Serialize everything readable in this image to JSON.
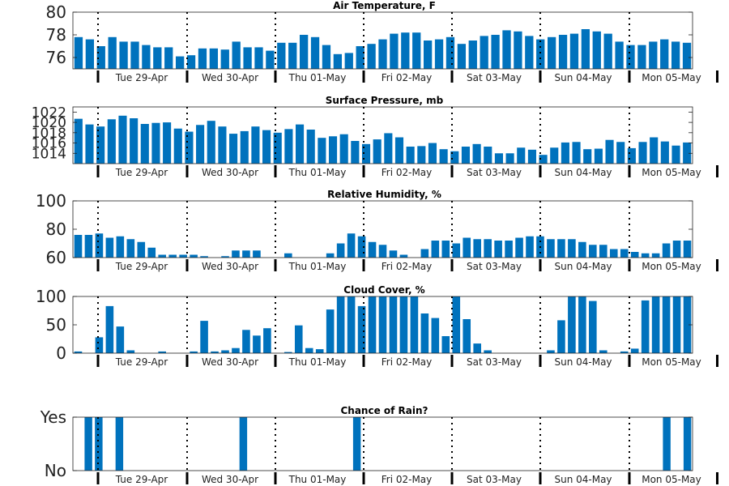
{
  "colors": {
    "bar": "#0072BD",
    "axis": "#222222",
    "divider": "#000000"
  },
  "chart_data": [
    {
      "type": "bar",
      "title": "Air Temperature, F",
      "ylim": [
        75,
        80
      ],
      "yticks": [
        {
          "v": 76,
          "label": "76"
        },
        {
          "v": 78,
          "label": "78"
        },
        {
          "v": 80,
          "label": "80"
        }
      ],
      "x_tick_labels": [
        "Tue 29-Apr",
        "Wed 30-Apr",
        "Thu 01-May",
        "Fri 02-May",
        "Sat 03-May",
        "Sun 04-May",
        "Mon 05-May"
      ],
      "values": [
        77.8,
        77.6,
        77.0,
        77.8,
        77.4,
        77.4,
        77.1,
        76.9,
        76.9,
        76.1,
        76.2,
        76.8,
        76.8,
        76.7,
        77.4,
        76.9,
        76.9,
        76.6,
        77.3,
        77.3,
        78.0,
        77.8,
        77.1,
        76.3,
        76.4,
        77.0,
        77.2,
        77.6,
        78.1,
        78.2,
        78.2,
        77.5,
        77.6,
        77.8,
        77.2,
        77.5,
        77.9,
        78.0,
        78.4,
        78.3,
        77.9,
        77.6,
        77.8,
        78.0,
        78.1,
        78.5,
        78.3,
        78.1,
        77.4,
        77.1,
        77.1,
        77.4,
        77.6,
        77.4,
        77.3
      ]
    },
    {
      "type": "bar",
      "title": "Surface Pressure, mb",
      "ylim": [
        1012,
        1023
      ],
      "yticks": [
        {
          "v": 1014,
          "label": "1014"
        },
        {
          "v": 1016,
          "label": "1016"
        },
        {
          "v": 1018,
          "label": "1018"
        },
        {
          "v": 1020,
          "label": "1020"
        },
        {
          "v": 1022,
          "label": "1022"
        }
      ],
      "x_tick_labels": [
        "Tue 29-Apr",
        "Wed 30-Apr",
        "Thu 01-May",
        "Fri 02-May",
        "Sat 03-May",
        "Sun 04-May",
        "Mon 05-May"
      ],
      "values": [
        1020.7,
        1019.6,
        1019.2,
        1020.6,
        1021.3,
        1020.8,
        1019.7,
        1019.9,
        1020.0,
        1018.8,
        1018.2,
        1019.5,
        1020.3,
        1019.2,
        1017.8,
        1018.3,
        1019.2,
        1018.5,
        1018.0,
        1018.7,
        1019.6,
        1018.6,
        1017.0,
        1017.3,
        1017.7,
        1016.4,
        1015.8,
        1016.7,
        1017.9,
        1017.1,
        1015.3,
        1015.4,
        1016.0,
        1014.8,
        1014.4,
        1015.3,
        1015.8,
        1015.3,
        1014.0,
        1014.0,
        1015.1,
        1014.7,
        1013.7,
        1015.1,
        1016.1,
        1016.2,
        1014.8,
        1014.9,
        1016.6,
        1016.2,
        1015.0,
        1016.2,
        1017.1,
        1016.3,
        1015.5,
        1016.1
      ]
    },
    {
      "type": "bar",
      "title": "Relative Humidity, %",
      "ylim": [
        60,
        100
      ],
      "yticks": [
        {
          "v": 60,
          "label": "60"
        },
        {
          "v": 80,
          "label": "80"
        },
        {
          "v": 100,
          "label": "100"
        }
      ],
      "x_tick_labels": [
        "Tue 29-Apr",
        "Wed 30-Apr",
        "Thu 01-May",
        "Fri 02-May",
        "Sat 03-May",
        "Sun 04-May",
        "Mon 05-May"
      ],
      "values": [
        76,
        76,
        77,
        74,
        75,
        73,
        71,
        67,
        62,
        62,
        62,
        62,
        61,
        60,
        61,
        65,
        65,
        65,
        60,
        60,
        63,
        60,
        60,
        60,
        63,
        70,
        77,
        75,
        71,
        69,
        65,
        62,
        60,
        66,
        72,
        72,
        70,
        74,
        73,
        73,
        72,
        72,
        74,
        75,
        75,
        73,
        73,
        73,
        71,
        69,
        69,
        66,
        66,
        64,
        63,
        63,
        70,
        72,
        72
      ]
    },
    {
      "type": "bar",
      "title": "Cloud Cover, %",
      "ylim": [
        0,
        100
      ],
      "yticks": [
        {
          "v": 0,
          "label": "0"
        },
        {
          "v": 50,
          "label": "50"
        },
        {
          "v": 100,
          "label": "100"
        }
      ],
      "x_tick_labels": [
        "Tue 29-Apr",
        "Wed 30-Apr",
        "Thu 01-May",
        "Fri 02-May",
        "Sat 03-May",
        "Sun 04-May",
        "Mon 05-May"
      ],
      "values": [
        3,
        0,
        28,
        83,
        47,
        5,
        0,
        0,
        3,
        0,
        0,
        3,
        57,
        3,
        5,
        9,
        41,
        31,
        44,
        0,
        2,
        49,
        9,
        7,
        77,
        100,
        100,
        83,
        100,
        100,
        100,
        100,
        100,
        70,
        62,
        30,
        100,
        60,
        17,
        5,
        0,
        0,
        0,
        0,
        0,
        5,
        58,
        100,
        100,
        92,
        5,
        0,
        3,
        8,
        93,
        100,
        100,
        100,
        100
      ]
    },
    {
      "type": "bar",
      "title": "Chance of Rain?",
      "ylim": [
        0,
        1
      ],
      "yticks": [
        {
          "v": 0,
          "label": "No"
        },
        {
          "v": 1,
          "label": "Yes"
        }
      ],
      "x_tick_labels": [
        "Tue 29-Apr",
        "Wed 30-Apr",
        "Thu 01-May",
        "Fri 02-May",
        "Sat 03-May",
        "Sun 04-May",
        "Mon 05-May"
      ],
      "values": [
        0,
        1,
        1,
        0,
        1,
        0,
        0,
        0,
        0,
        0,
        0,
        0,
        0,
        0,
        0,
        0,
        1,
        0,
        0,
        0,
        0,
        0,
        0,
        0,
        0,
        0,
        0,
        1,
        0,
        0,
        0,
        0,
        0,
        0,
        0,
        0,
        0,
        0,
        0,
        0,
        0,
        0,
        0,
        0,
        0,
        0,
        0,
        0,
        0,
        0,
        0,
        0,
        0,
        0,
        0,
        0,
        0,
        1,
        0,
        1
      ]
    }
  ]
}
